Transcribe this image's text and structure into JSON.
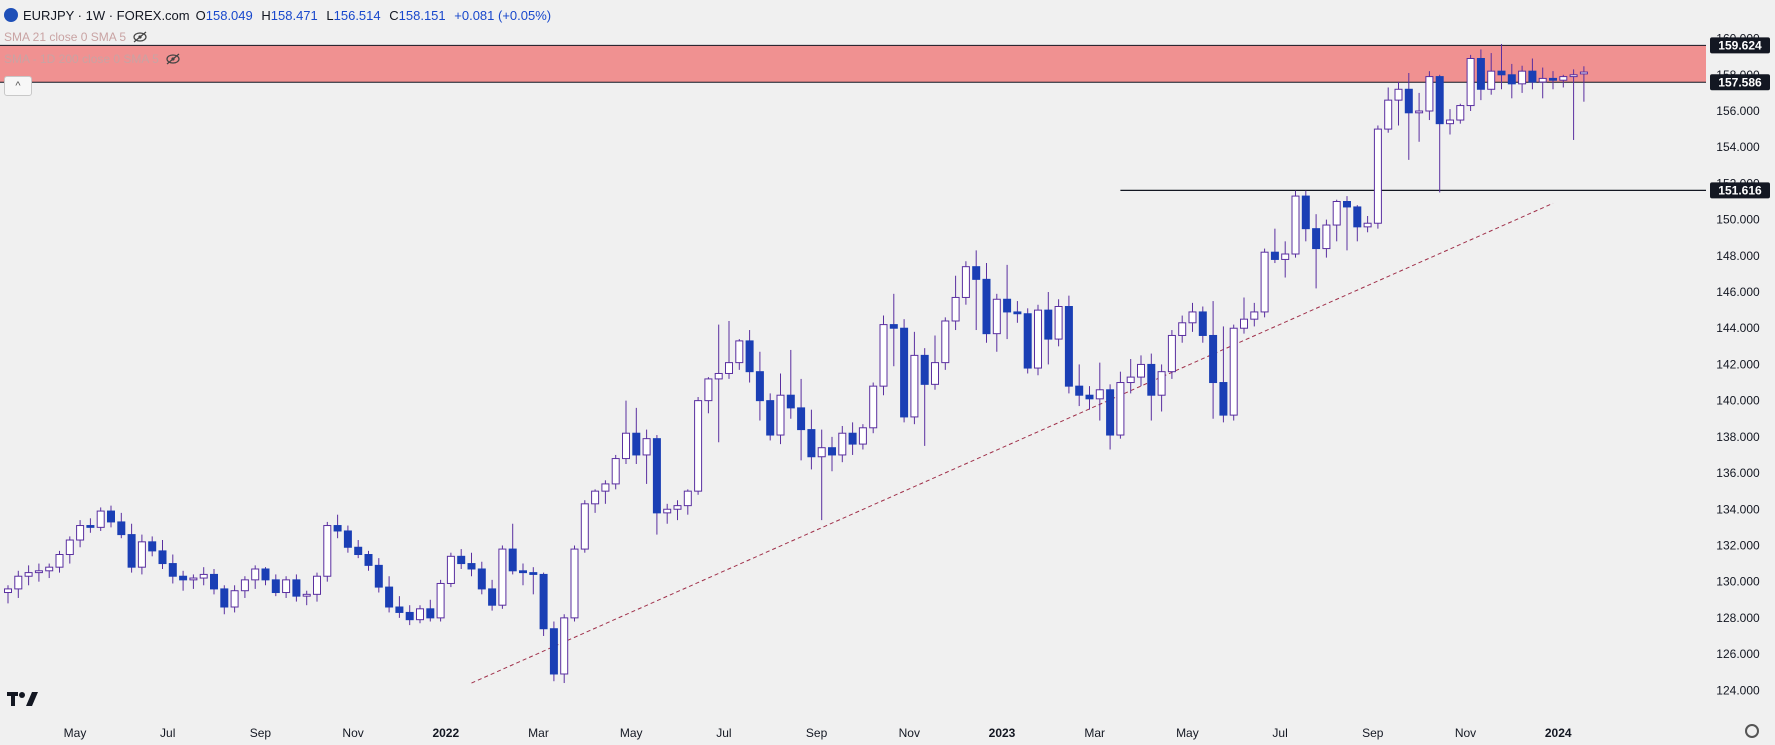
{
  "header": {
    "symbol": "EURJPY · 1W · FOREX.com",
    "ohlc": [
      {
        "k": "O",
        "v": "158.049"
      },
      {
        "k": "H",
        "v": "158.471"
      },
      {
        "k": "L",
        "v": "156.514"
      },
      {
        "k": "C",
        "v": "158.151"
      }
    ],
    "change": "+0.081 (+0.05%)",
    "indicators": [
      "SMA 21 close 0 SMA 5",
      "SMA - 1D 200 close 0 SMA 5"
    ],
    "collapse_label": "^"
  },
  "colors": {
    "up": "#ffffff",
    "down": "#1a3fb5",
    "wick": "#5a2fa0",
    "zone": "#f08080",
    "trendline": "#a0304a",
    "level_line": "#131722",
    "background": "#f0f0f0"
  },
  "icons": [
    "eye-off-icon",
    "tradingview-logo",
    "gear-icon"
  ],
  "chart_data": {
    "type": "candlestick",
    "y_ticks": [
      "124.000",
      "126.000",
      "128.000",
      "130.000",
      "132.000",
      "134.000",
      "136.000",
      "138.000",
      "140.000",
      "142.000",
      "144.000",
      "146.000",
      "148.000",
      "150.000",
      "152.000",
      "154.000",
      "156.000",
      "158.000",
      "160.000"
    ],
    "ylim": [
      122.8,
      161.8
    ],
    "x_ticks": [
      {
        "label": "May",
        "week": 0
      },
      {
        "label": "Jul",
        "week": 9
      },
      {
        "label": "Sep",
        "week": 18
      },
      {
        "label": "Nov",
        "week": 27
      },
      {
        "label": "2022",
        "week": 36
      },
      {
        "label": "Mar",
        "week": 45
      },
      {
        "label": "May",
        "week": 54
      },
      {
        "label": "Jul",
        "week": 63
      },
      {
        "label": "Sep",
        "week": 72
      },
      {
        "label": "Nov",
        "week": 81
      },
      {
        "label": "2023",
        "week": 90
      },
      {
        "label": "Mar",
        "week": 99
      },
      {
        "label": "May",
        "week": 108
      },
      {
        "label": "Jul",
        "week": 117
      },
      {
        "label": "Sep",
        "week": 126
      },
      {
        "label": "Nov",
        "week": 135
      },
      {
        "label": "2024",
        "week": 144
      }
    ],
    "price_labels": [
      {
        "value": 159.624,
        "label": "159.624"
      },
      {
        "value": 157.586,
        "label": "157.586"
      },
      {
        "value": 151.616,
        "label": "151.616"
      }
    ],
    "zone": {
      "low": 157.586,
      "high": 159.624
    },
    "support_line": {
      "value": 151.616,
      "from_week": 108
    },
    "trendline": {
      "from": {
        "week": 45,
        "value": 124.4
      },
      "to": {
        "week": 150,
        "value": 150.9
      }
    },
    "candles": [
      [
        129.4,
        129.8,
        128.8,
        129.6
      ],
      [
        129.6,
        130.6,
        129.1,
        130.3
      ],
      [
        130.3,
        130.9,
        129.8,
        130.5
      ],
      [
        130.5,
        131.0,
        130.0,
        130.6
      ],
      [
        130.6,
        131.0,
        130.2,
        130.8
      ],
      [
        130.8,
        131.7,
        130.5,
        131.5
      ],
      [
        131.5,
        132.5,
        131.0,
        132.3
      ],
      [
        132.3,
        133.4,
        131.9,
        133.1
      ],
      [
        133.1,
        133.5,
        132.7,
        133.0
      ],
      [
        133.0,
        134.1,
        132.8,
        133.9
      ],
      [
        133.9,
        134.2,
        133.0,
        133.3
      ],
      [
        133.3,
        133.8,
        132.4,
        132.6
      ],
      [
        132.6,
        133.2,
        130.5,
        130.8
      ],
      [
        130.8,
        132.6,
        130.4,
        132.2
      ],
      [
        132.2,
        132.5,
        131.4,
        131.7
      ],
      [
        131.7,
        132.3,
        130.7,
        131.0
      ],
      [
        131.0,
        131.5,
        129.9,
        130.3
      ],
      [
        130.3,
        130.6,
        129.5,
        130.1
      ],
      [
        130.1,
        130.4,
        129.6,
        130.2
      ],
      [
        130.2,
        130.8,
        129.8,
        130.4
      ],
      [
        130.4,
        130.7,
        129.3,
        129.6
      ],
      [
        129.6,
        129.8,
        128.2,
        128.6
      ],
      [
        128.6,
        129.8,
        128.3,
        129.5
      ],
      [
        129.5,
        130.3,
        129.1,
        130.1
      ],
      [
        130.1,
        130.9,
        129.6,
        130.7
      ],
      [
        130.7,
        130.8,
        129.8,
        130.1
      ],
      [
        130.1,
        130.4,
        129.2,
        129.4
      ],
      [
        129.4,
        130.3,
        129.1,
        130.1
      ],
      [
        130.1,
        130.4,
        128.9,
        129.2
      ],
      [
        129.2,
        129.5,
        128.7,
        129.3
      ],
      [
        129.3,
        130.5,
        128.9,
        130.3
      ],
      [
        130.3,
        133.3,
        130.0,
        133.1
      ],
      [
        133.1,
        133.7,
        132.4,
        132.8
      ],
      [
        132.8,
        133.1,
        131.6,
        131.9
      ],
      [
        131.9,
        132.3,
        131.3,
        131.5
      ],
      [
        131.5,
        131.7,
        130.6,
        130.9
      ],
      [
        130.9,
        131.3,
        129.4,
        129.7
      ],
      [
        129.7,
        130.3,
        128.3,
        128.6
      ],
      [
        128.6,
        129.2,
        128.0,
        128.3
      ],
      [
        128.3,
        128.7,
        127.6,
        127.9
      ],
      [
        127.9,
        128.7,
        127.7,
        128.5
      ],
      [
        128.5,
        129.0,
        127.8,
        128.0
      ],
      [
        128.0,
        130.1,
        127.8,
        129.9
      ],
      [
        129.9,
        131.6,
        129.7,
        131.4
      ],
      [
        131.4,
        131.8,
        130.7,
        131.0
      ],
      [
        131.0,
        131.6,
        130.3,
        130.7
      ],
      [
        130.7,
        131.1,
        129.3,
        129.6
      ],
      [
        129.6,
        130.1,
        128.4,
        128.7
      ],
      [
        128.7,
        132.0,
        128.5,
        131.8
      ],
      [
        131.8,
        133.2,
        130.4,
        130.6
      ],
      [
        130.6,
        131.0,
        129.8,
        130.5
      ],
      [
        130.5,
        130.8,
        129.3,
        130.4
      ],
      [
        130.4,
        130.5,
        127.0,
        127.4
      ],
      [
        127.4,
        127.8,
        124.5,
        124.9
      ],
      [
        124.9,
        128.2,
        124.4,
        128.0
      ],
      [
        128.0,
        132.0,
        127.8,
        131.8
      ],
      [
        131.8,
        134.5,
        131.6,
        134.3
      ],
      [
        134.3,
        135.1,
        133.8,
        135.0
      ],
      [
        135.0,
        135.6,
        134.3,
        135.4
      ],
      [
        135.4,
        137.0,
        135.1,
        136.8
      ],
      [
        136.8,
        140.0,
        136.5,
        138.2
      ],
      [
        138.2,
        139.6,
        136.5,
        137.0
      ],
      [
        137.0,
        138.4,
        135.4,
        137.9
      ],
      [
        137.9,
        138.1,
        132.6,
        133.8
      ],
      [
        133.8,
        134.3,
        133.2,
        134.0
      ],
      [
        134.0,
        134.5,
        133.4,
        134.2
      ],
      [
        134.2,
        135.1,
        133.7,
        135.0
      ],
      [
        135.0,
        140.2,
        134.8,
        140.0
      ],
      [
        140.0,
        141.3,
        139.3,
        141.2
      ],
      [
        141.2,
        144.2,
        137.7,
        141.5
      ],
      [
        141.5,
        144.4,
        141.2,
        142.1
      ],
      [
        142.1,
        143.4,
        141.7,
        143.3
      ],
      [
        143.3,
        143.9,
        141.0,
        141.6
      ],
      [
        141.6,
        142.7,
        138.9,
        140.0
      ],
      [
        140.0,
        140.4,
        137.8,
        138.1
      ],
      [
        138.1,
        141.5,
        137.6,
        140.3
      ],
      [
        140.3,
        142.8,
        139.0,
        139.6
      ],
      [
        139.6,
        141.2,
        136.7,
        138.4
      ],
      [
        138.4,
        139.5,
        136.2,
        136.9
      ],
      [
        136.9,
        138.4,
        133.4,
        137.4
      ],
      [
        137.4,
        138.0,
        136.1,
        137.0
      ],
      [
        137.0,
        138.6,
        136.6,
        138.2
      ],
      [
        138.2,
        138.8,
        137.0,
        137.6
      ],
      [
        137.6,
        138.7,
        137.3,
        138.5
      ],
      [
        138.5,
        141.0,
        138.2,
        140.8
      ],
      [
        140.8,
        144.7,
        140.3,
        144.2
      ],
      [
        144.2,
        145.9,
        141.9,
        144.0
      ],
      [
        144.0,
        144.5,
        138.8,
        139.1
      ],
      [
        139.1,
        143.8,
        138.7,
        142.5
      ],
      [
        142.5,
        142.9,
        137.5,
        140.9
      ],
      [
        140.9,
        143.6,
        140.6,
        142.1
      ],
      [
        142.1,
        144.6,
        141.7,
        144.4
      ],
      [
        144.4,
        146.9,
        143.9,
        145.7
      ],
      [
        145.7,
        147.7,
        145.3,
        147.4
      ],
      [
        147.4,
        148.3,
        143.9,
        146.7
      ],
      [
        146.7,
        147.6,
        143.2,
        143.7
      ],
      [
        143.7,
        145.9,
        142.7,
        145.6
      ],
      [
        145.6,
        147.5,
        143.4,
        144.9
      ],
      [
        144.9,
        145.5,
        144.3,
        144.8
      ],
      [
        144.8,
        145.1,
        141.5,
        141.8
      ],
      [
        141.8,
        145.3,
        141.4,
        145.0
      ],
      [
        145.0,
        146.0,
        142.0,
        143.4
      ],
      [
        143.4,
        145.6,
        143.0,
        145.2
      ],
      [
        145.2,
        145.8,
        140.4,
        140.8
      ],
      [
        140.8,
        142.0,
        139.7,
        140.3
      ],
      [
        140.3,
        140.8,
        139.5,
        140.1
      ],
      [
        140.1,
        142.1,
        138.9,
        140.6
      ],
      [
        140.6,
        140.9,
        137.3,
        138.1
      ],
      [
        138.1,
        141.6,
        137.9,
        141.0
      ],
      [
        141.0,
        142.3,
        140.4,
        141.3
      ],
      [
        141.3,
        142.5,
        140.8,
        142.0
      ],
      [
        142.0,
        142.6,
        138.9,
        140.3
      ],
      [
        140.3,
        142.0,
        139.4,
        141.6
      ],
      [
        141.6,
        143.9,
        141.2,
        143.6
      ],
      [
        143.6,
        144.7,
        143.2,
        144.3
      ],
      [
        144.3,
        145.4,
        143.8,
        144.9
      ],
      [
        144.9,
        145.2,
        143.2,
        143.6
      ],
      [
        143.6,
        145.5,
        139.0,
        141.0
      ],
      [
        141.0,
        144.1,
        138.8,
        139.2
      ],
      [
        139.2,
        144.2,
        138.9,
        144.0
      ],
      [
        144.0,
        145.7,
        143.7,
        144.5
      ],
      [
        144.5,
        145.4,
        144.1,
        144.9
      ],
      [
        144.9,
        148.4,
        144.6,
        148.2
      ],
      [
        148.2,
        149.5,
        147.6,
        147.8
      ],
      [
        147.8,
        148.8,
        146.8,
        148.1
      ],
      [
        148.1,
        151.6,
        147.9,
        151.3
      ],
      [
        151.3,
        151.6,
        148.8,
        149.5
      ],
      [
        149.5,
        150.3,
        146.2,
        148.4
      ],
      [
        148.4,
        150.0,
        147.9,
        149.7
      ],
      [
        149.7,
        151.1,
        148.8,
        151.0
      ],
      [
        151.0,
        151.3,
        148.3,
        150.7
      ],
      [
        150.7,
        150.8,
        148.8,
        149.6
      ],
      [
        149.6,
        150.2,
        149.3,
        149.8
      ],
      [
        149.8,
        155.2,
        149.5,
        155.0
      ],
      [
        155.0,
        157.3,
        154.8,
        156.6
      ],
      [
        156.6,
        157.6,
        155.2,
        157.2
      ],
      [
        157.2,
        158.1,
        153.3,
        155.9
      ],
      [
        155.9,
        157.0,
        154.3,
        156.0
      ],
      [
        156.0,
        158.2,
        155.5,
        157.9
      ],
      [
        157.9,
        158.0,
        151.5,
        155.3
      ],
      [
        155.3,
        156.1,
        154.7,
        155.5
      ],
      [
        155.5,
        156.4,
        155.3,
        156.3
      ],
      [
        156.3,
        159.1,
        156.0,
        158.9
      ],
      [
        158.9,
        159.4,
        156.6,
        157.2
      ],
      [
        157.2,
        159.2,
        156.9,
        158.2
      ],
      [
        158.2,
        159.7,
        157.2,
        158.0
      ],
      [
        158.0,
        158.6,
        156.7,
        157.5
      ],
      [
        157.5,
        158.5,
        157.0,
        158.2
      ],
      [
        158.2,
        158.9,
        157.2,
        157.6
      ],
      [
        157.6,
        158.4,
        156.7,
        157.8
      ],
      [
        157.8,
        158.2,
        157.2,
        157.7
      ],
      [
        157.7,
        158.0,
        157.3,
        157.9
      ],
      [
        157.9,
        158.3,
        154.4,
        158.0
      ],
      [
        158.049,
        158.471,
        156.514,
        158.151
      ]
    ]
  }
}
